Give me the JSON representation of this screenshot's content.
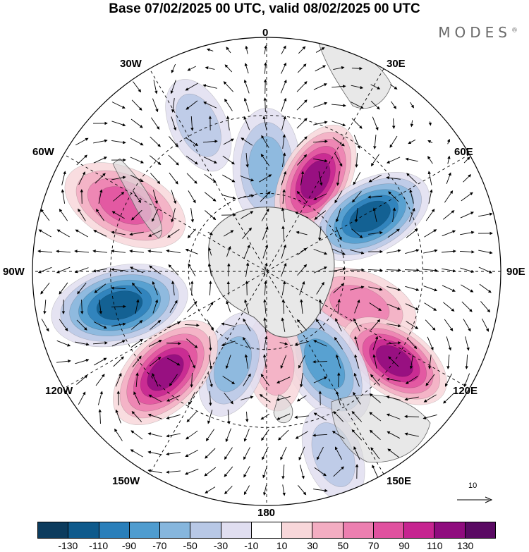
{
  "title": "Base 07/02/2025 00 UTC, valid 08/02/2025 00 UTC",
  "brand": "MODES",
  "brand_mark": "®",
  "map_labels": {
    "lon_0": "0",
    "lon_30e": "30E",
    "lon_60e": "60E",
    "lon_90e": "90E",
    "lon_120e": "120E",
    "lon_150e": "150E",
    "lon_180": "180",
    "lon_150w": "150W",
    "lon_120w": "120W",
    "lon_90w": "90W",
    "lon_60w": "60W",
    "lon_30w": "30W"
  },
  "projection": "south-polar-stereographic",
  "vector_scale_label": "10",
  "colorbar": {
    "colors": [
      "#0c3c5e",
      "#0e5a8c",
      "#2a7fba",
      "#4f9ccf",
      "#86b6dd",
      "#b8c8e6",
      "#e0def0",
      "#ffffff",
      "#f8d7da",
      "#f3adc2",
      "#ec7fb0",
      "#e0519f",
      "#c62490",
      "#8f0c7e",
      "#5a0a63"
    ],
    "tick_labels": [
      "-130",
      "-110",
      "-90",
      "-70",
      "-50",
      "-30",
      "-10",
      "10",
      "30",
      "50",
      "70",
      "90",
      "110",
      "130"
    ]
  },
  "anomalies": [
    {
      "lon": 0,
      "colat": 40,
      "value": -60,
      "size": 1.0
    },
    {
      "lon": 28,
      "colat": 40,
      "value": 120,
      "size": 1.0
    },
    {
      "lon": 62,
      "colat": 45,
      "value": -110,
      "size": 1.1
    },
    {
      "lon": 110,
      "colat": 38,
      "value": 60,
      "size": 1.0
    },
    {
      "lon": 125,
      "colat": 60,
      "value": 120,
      "size": 1.0
    },
    {
      "lon": 148,
      "colat": 42,
      "value": -70,
      "size": 1.1
    },
    {
      "lon": 160,
      "colat": 75,
      "value": -40,
      "size": 0.8
    },
    {
      "lon": 175,
      "colat": 35,
      "value": 40,
      "size": 0.8
    },
    {
      "lon": -160,
      "colat": 38,
      "value": -60,
      "size": 0.9
    },
    {
      "lon": -135,
      "colat": 55,
      "value": 110,
      "size": 1.1
    },
    {
      "lon": -103,
      "colat": 58,
      "value": -110,
      "size": 1.2
    },
    {
      "lon": -65,
      "colat": 60,
      "value": 80,
      "size": 1.1
    },
    {
      "lon": -25,
      "colat": 62,
      "value": -30,
      "size": 0.8
    }
  ]
}
